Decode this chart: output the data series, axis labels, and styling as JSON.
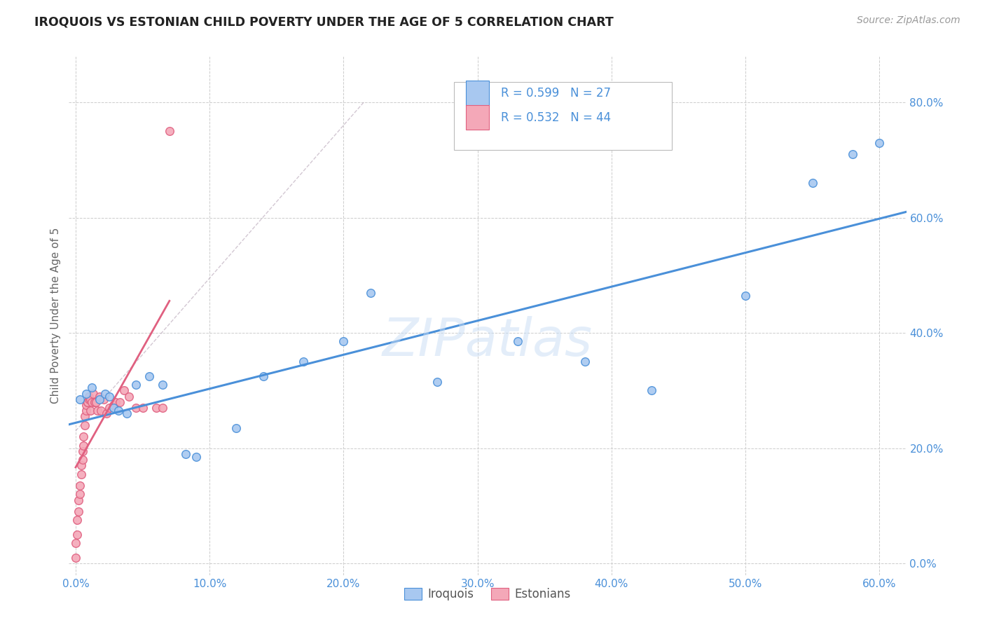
{
  "title": "IROQUOIS VS ESTONIAN CHILD POVERTY UNDER THE AGE OF 5 CORRELATION CHART",
  "source": "Source: ZipAtlas.com",
  "ylabel": "Child Poverty Under the Age of 5",
  "xlim": [
    -0.005,
    0.62
  ],
  "ylim": [
    -0.02,
    0.88
  ],
  "xticks": [
    0.0,
    0.1,
    0.2,
    0.3,
    0.4,
    0.5,
    0.6
  ],
  "yticks": [
    0.0,
    0.2,
    0.4,
    0.6,
    0.8
  ],
  "watermark": "ZIPatlas",
  "iroquois_color": "#a8c8f0",
  "estonian_color": "#f4a8b8",
  "iroquois_line_color": "#4a90d9",
  "estonian_line_color": "#e06080",
  "background_color": "#ffffff",
  "grid_color": "#cccccc",
  "iroquois_x": [
    0.003,
    0.008,
    0.012,
    0.018,
    0.022,
    0.025,
    0.028,
    0.032,
    0.038,
    0.045,
    0.055,
    0.065,
    0.082,
    0.12,
    0.17,
    0.22,
    0.27,
    0.33,
    0.38,
    0.43,
    0.5,
    0.55,
    0.58,
    0.6,
    0.14,
    0.09,
    0.2
  ],
  "iroquois_y": [
    0.285,
    0.295,
    0.305,
    0.285,
    0.295,
    0.29,
    0.27,
    0.265,
    0.26,
    0.31,
    0.325,
    0.31,
    0.19,
    0.235,
    0.35,
    0.47,
    0.315,
    0.385,
    0.35,
    0.3,
    0.465,
    0.66,
    0.71,
    0.73,
    0.325,
    0.185,
    0.385
  ],
  "estonian_x": [
    0.0,
    0.0,
    0.001,
    0.001,
    0.002,
    0.002,
    0.003,
    0.003,
    0.004,
    0.004,
    0.005,
    0.005,
    0.006,
    0.006,
    0.007,
    0.007,
    0.008,
    0.008,
    0.009,
    0.009,
    0.01,
    0.01,
    0.011,
    0.011,
    0.012,
    0.013,
    0.014,
    0.015,
    0.016,
    0.018,
    0.019,
    0.021,
    0.023,
    0.025,
    0.028,
    0.03,
    0.033,
    0.036,
    0.04,
    0.045,
    0.05,
    0.06,
    0.065,
    0.07
  ],
  "estonian_y": [
    0.01,
    0.035,
    0.05,
    0.075,
    0.09,
    0.11,
    0.12,
    0.135,
    0.155,
    0.17,
    0.18,
    0.195,
    0.205,
    0.22,
    0.24,
    0.255,
    0.265,
    0.275,
    0.28,
    0.28,
    0.285,
    0.29,
    0.285,
    0.265,
    0.28,
    0.295,
    0.28,
    0.28,
    0.265,
    0.29,
    0.265,
    0.285,
    0.26,
    0.27,
    0.275,
    0.28,
    0.28,
    0.3,
    0.29,
    0.27,
    0.27,
    0.27,
    0.27,
    0.75
  ],
  "legend_iroquois": "R = 0.599   N = 27",
  "legend_estonian": "R = 0.532   N = 44"
}
